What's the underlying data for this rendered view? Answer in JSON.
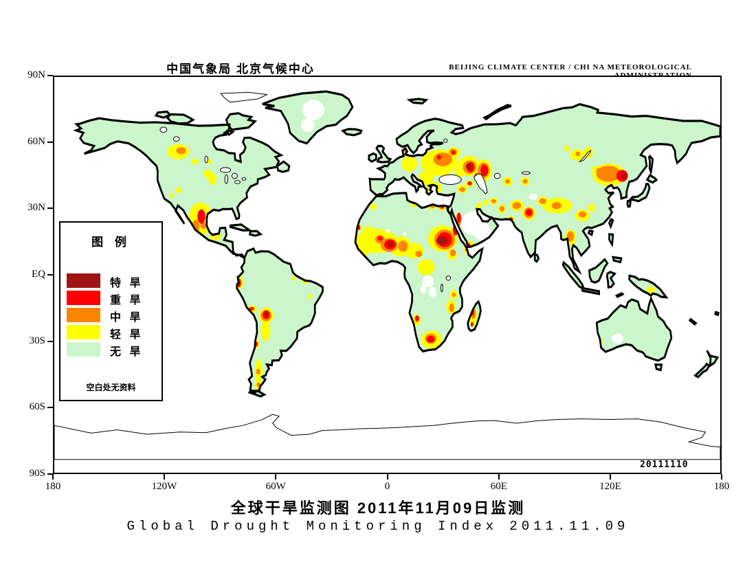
{
  "header": {
    "left": "中国气象局  北京气候中心",
    "right": "BEIJING CLIMATE CENTER / CHI NA METEOROLOGICAL ADMINISTRATION"
  },
  "titles": {
    "chinese": "全球干旱监测图  2011年11月09日监测",
    "english": "Global Drought Monitoring Index  2011.11.09"
  },
  "map": {
    "stamp": "20111110",
    "lat_ticks": [
      "90N",
      "60N",
      "30N",
      "EQ",
      "30S",
      "60S",
      "90S"
    ],
    "lon_ticks": [
      "180",
      "120W",
      "60W",
      "0",
      "60E",
      "120E",
      "180"
    ]
  },
  "legend": {
    "title": "图  例",
    "note": "空白处无资料",
    "items": [
      {
        "label": "特 旱",
        "color": "#A01414",
        "meaning": "extreme-drought"
      },
      {
        "label": "重 旱",
        "color": "#FE0000",
        "meaning": "severe-drought"
      },
      {
        "label": "中 旱",
        "color": "#FF8400",
        "meaning": "moderate-drought"
      },
      {
        "label": "轻 旱",
        "color": "#FFFF00",
        "meaning": "light-drought"
      },
      {
        "label": "无 旱",
        "color": "#CBF5CB",
        "meaning": "no-drought"
      }
    ]
  },
  "colors": {
    "extreme": "#A01414",
    "severe": "#FE0000",
    "moderate": "#FF8400",
    "light": "#FFFF00",
    "none": "#CBF5CB",
    "nodata": "#FFFFFF",
    "ocean": "#FFFFFF",
    "coastline": "#000000"
  }
}
